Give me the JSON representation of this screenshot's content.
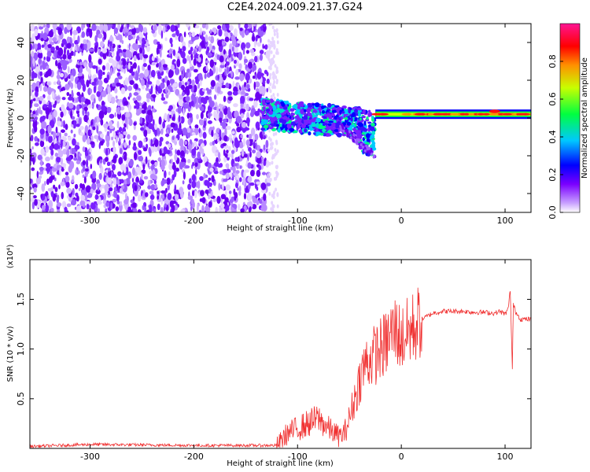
{
  "title": "C2E4.2024.009.21.37.G24",
  "chart_data": [
    {
      "type": "heatmap",
      "xlabel": "Height of straight line (km)",
      "ylabel": "Frequency (Hz)",
      "xlim": [
        -358,
        125
      ],
      "ylim": [
        -50,
        50
      ],
      "x_ticks": [
        -300,
        -200,
        -100,
        0,
        100
      ],
      "y_ticks": [
        -40,
        -20,
        0,
        20,
        40
      ],
      "colorbar": {
        "label": "Normalized spectral amplitude",
        "range": [
          0,
          1
        ],
        "ticks": [
          0.0,
          0.2,
          0.4,
          0.6,
          0.8
        ],
        "colors": [
          "#ffffff",
          "#8a2be2",
          "#0000ff",
          "#00e5ff",
          "#00ff00",
          "#ffff00",
          "#ff8000",
          "#ff0000",
          "#ff1493"
        ]
      },
      "regions": [
        {
          "x_from": -358,
          "x_to": -128,
          "freq_from": -50,
          "freq_to": 50,
          "level": "0.0-0.1 broadband noise"
        },
        {
          "x_from": -135,
          "x_to": -25,
          "freq_center": 0,
          "freq_drift_to": -20,
          "level": "0.1-0.5"
        },
        {
          "x_from": -25,
          "x_to": 125,
          "freq": 2,
          "level": "0.8-1.0"
        }
      ]
    },
    {
      "type": "line",
      "xlabel": "Height of straight line (km)",
      "ylabel": "SNR (10 * v/v)",
      "y_multiplier": "(x10⁴)",
      "xlim": [
        -358,
        125
      ],
      "ylim": [
        0,
        1.9
      ],
      "x_ticks": [
        -300,
        -200,
        -100,
        0,
        100
      ],
      "y_ticks": [
        0.5,
        1.0,
        1.5
      ],
      "series_color": "#f03030",
      "x": [
        -358,
        -300,
        -200,
        -120,
        -110,
        -100,
        -90,
        -80,
        -70,
        -60,
        -55,
        -50,
        -45,
        -40,
        -35,
        -30,
        -25,
        -20,
        -15,
        -10,
        -5,
        0,
        10,
        20,
        30,
        40,
        50,
        60,
        70,
        80,
        90,
        95,
        100,
        103,
        105,
        107,
        108,
        110,
        115,
        125
      ],
      "values": [
        0.02,
        0.04,
        0.03,
        0.03,
        0.15,
        0.2,
        0.25,
        0.3,
        0.2,
        0.12,
        0.15,
        0.3,
        0.5,
        0.7,
        0.85,
        0.9,
        0.95,
        1.0,
        1.05,
        1.15,
        1.2,
        1.1,
        1.2,
        1.3,
        1.36,
        1.38,
        1.38,
        1.38,
        1.37,
        1.37,
        1.36,
        1.38,
        1.35,
        1.4,
        1.6,
        0.8,
        1.45,
        1.38,
        1.3,
        1.3
      ]
    }
  ]
}
